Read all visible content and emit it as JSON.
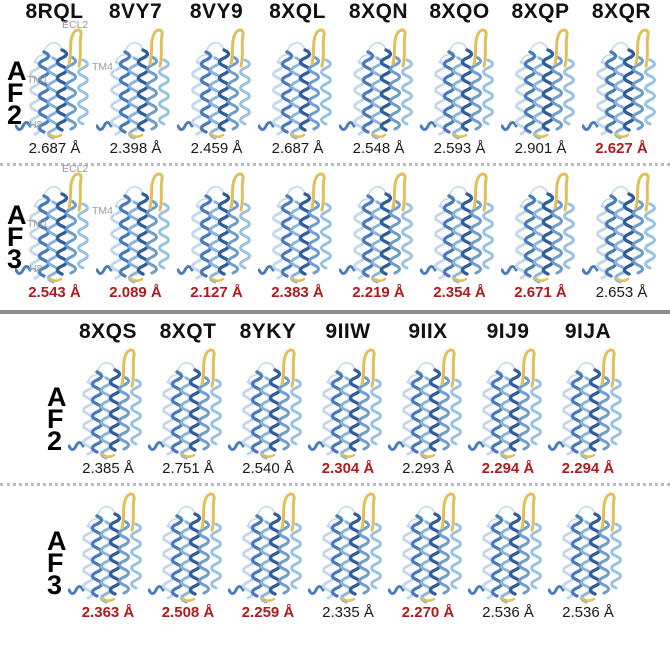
{
  "figure_type": "protein-structure-comparison",
  "unit": "Å",
  "colors": {
    "highlight_red": "#ae1c1e",
    "value_black": "#1a1a1a",
    "annotation_gray": "#9a9a9a",
    "separator_gray": "#8f8f8f",
    "ribbon_blue_dark": "#305c9c",
    "ribbon_blue": "#4a7cbd",
    "ribbon_blue_mid": "#6e9dcb",
    "ribbon_blue_light": "#8cb5da",
    "ribbon_blue_soft": "#9cc2e0",
    "ribbon_blue_pale": "#c2d9eb",
    "ribbon_yellow": "#dfc05a"
  },
  "panels": [
    {
      "codes": [
        "8RQL",
        "8VY7",
        "8VY9",
        "8XQL",
        "8XQN",
        "8XQO",
        "8XQP",
        "8XQR"
      ],
      "rows": [
        {
          "model": "AF2",
          "model_chars": [
            "A",
            "F",
            "2"
          ],
          "annotations": {
            "ecl2": "ECL2",
            "tm4": "TM4",
            "tm1": "TM1",
            "h8": "H8"
          },
          "values": [
            {
              "text": "2.687 Å",
              "red": false
            },
            {
              "text": "2.398 Å",
              "red": false
            },
            {
              "text": "2.459 Å",
              "red": false
            },
            {
              "text": "2.687 Å",
              "red": false
            },
            {
              "text": "2.548 Å",
              "red": false
            },
            {
              "text": "2.593 Å",
              "red": false
            },
            {
              "text": "2.901 Å",
              "red": false
            },
            {
              "text": "2.627 Å",
              "red": true
            }
          ]
        },
        {
          "model": "AF3",
          "model_chars": [
            "A",
            "F",
            "3"
          ],
          "annotations": {
            "ecl2": "ECL2",
            "tm4": "TM4",
            "tm1": "TM1",
            "h8": "H8"
          },
          "values": [
            {
              "text": "2.543 Å",
              "red": true
            },
            {
              "text": "2.089 Å",
              "red": true
            },
            {
              "text": "2.127 Å",
              "red": true
            },
            {
              "text": "2.383 Å",
              "red": true
            },
            {
              "text": "2.219 Å",
              "red": true
            },
            {
              "text": "2.354 Å",
              "red": true
            },
            {
              "text": "2.671 Å",
              "red": true
            },
            {
              "text": "2.653 Å",
              "red": false
            }
          ]
        }
      ]
    },
    {
      "codes": [
        "8XQS",
        "8XQT",
        "8YKY",
        "9IIW",
        "9IIX",
        "9IJ9",
        "9IJA"
      ],
      "rows": [
        {
          "model": "AF2",
          "model_chars": [
            "A",
            "F",
            "2"
          ],
          "annotations": null,
          "values": [
            {
              "text": "2.385 Å",
              "red": false
            },
            {
              "text": "2.751 Å",
              "red": false
            },
            {
              "text": "2.540 Å",
              "red": false
            },
            {
              "text": "2.304 Å",
              "red": true
            },
            {
              "text": "2.293 Å",
              "red": false
            },
            {
              "text": "2.294 Å",
              "red": true
            },
            {
              "text": "2.294 Å",
              "red": true
            }
          ]
        },
        {
          "model": "AF3",
          "model_chars": [
            "A",
            "F",
            "3"
          ],
          "annotations": null,
          "values": [
            {
              "text": "2.363 Å",
              "red": true
            },
            {
              "text": "2.508 Å",
              "red": true
            },
            {
              "text": "2.259 Å",
              "red": true
            },
            {
              "text": "2.335 Å",
              "red": false
            },
            {
              "text": "2.270 Å",
              "red": true
            },
            {
              "text": "2.536 Å",
              "red": false
            },
            {
              "text": "2.536 Å",
              "red": false
            }
          ]
        }
      ]
    }
  ]
}
